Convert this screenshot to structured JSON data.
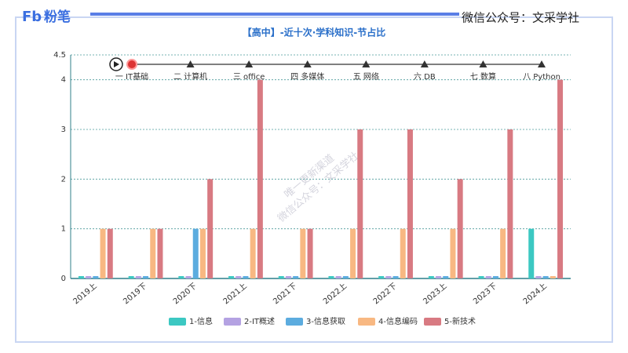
{
  "header": {
    "logo_mark": "Fb",
    "logo": "粉笔",
    "account": "微信公众号：文采学社"
  },
  "watermark": [
    "唯一更新渠道",
    "微信公众号：文采学社"
  ],
  "chart_data": {
    "type": "bar",
    "title": "【高中】-近十次·学科知识-节占比",
    "timeline": [
      "一 IT基础",
      "二 计算机",
      "三 office",
      "四 多媒体",
      "五 网络",
      "六 DB",
      "七 数算",
      "八 Python"
    ],
    "categories": [
      "2019上",
      "2019下",
      "2020下",
      "2021上",
      "2021下",
      "2022上",
      "2022下",
      "2023上",
      "2023下",
      "2024上"
    ],
    "series": [
      {
        "name": "1-信息",
        "color": "#3cc8c2",
        "values": [
          0,
          0,
          0,
          0,
          0,
          0,
          0,
          0,
          0,
          1
        ]
      },
      {
        "name": "2-IT概述",
        "color": "#b4a2e2",
        "values": [
          0,
          0,
          0,
          0,
          0,
          0,
          0,
          0,
          0,
          0
        ]
      },
      {
        "name": "3-信息获取",
        "color": "#5cacdf",
        "values": [
          0,
          0,
          1,
          0,
          0,
          0,
          0,
          0,
          0,
          0
        ]
      },
      {
        "name": "4-信息编码",
        "color": "#f8b882",
        "values": [
          1,
          1,
          1,
          1,
          1,
          1,
          1,
          1,
          1,
          0
        ]
      },
      {
        "name": "5-新技术",
        "color": "#d87a82",
        "values": [
          1,
          1,
          2,
          4,
          1,
          3,
          3,
          2,
          3,
          4
        ]
      }
    ],
    "ylim": [
      0,
      4.5
    ],
    "yticks": [
      0,
      1,
      2,
      3,
      4,
      4.5
    ],
    "grid": true,
    "legend": "bottom"
  }
}
